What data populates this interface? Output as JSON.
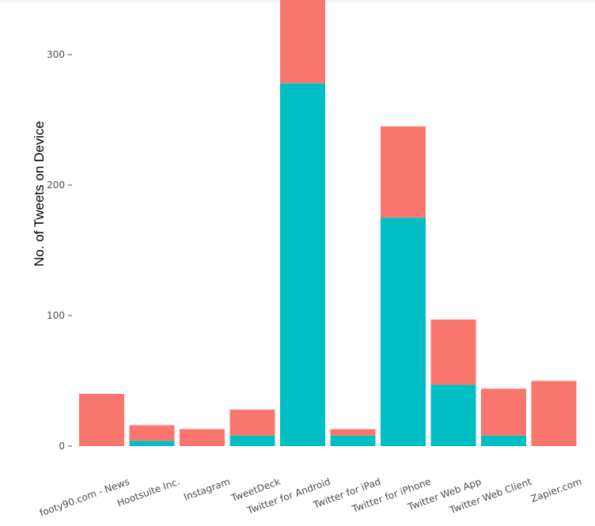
{
  "chart_data": {
    "type": "bar",
    "stacked": true,
    "title": "",
    "xlabel": "",
    "ylabel": "No. of Tweets on Device",
    "ylim": [
      0,
      345
    ],
    "yticks": [
      0,
      100,
      200,
      300
    ],
    "grid": false,
    "legend": "none",
    "categories": [
      "footy90.com - News",
      "Hootsuite Inc.",
      "Instagram",
      "TweetDeck",
      "Twitter for Android",
      "Twitter for iPad",
      "Twitter for iPhone",
      "Twitter Web App",
      "Twitter Web Client",
      "Zapier.com"
    ],
    "series": [
      {
        "name": "teal",
        "color": "#00BFC4",
        "values": [
          0,
          4,
          0,
          8,
          278,
          8,
          175,
          47,
          8,
          0
        ]
      },
      {
        "name": "salmon",
        "color": "#F8766D",
        "values": [
          40,
          12,
          13,
          20,
          67,
          5,
          70,
          50,
          36,
          50
        ]
      }
    ]
  }
}
